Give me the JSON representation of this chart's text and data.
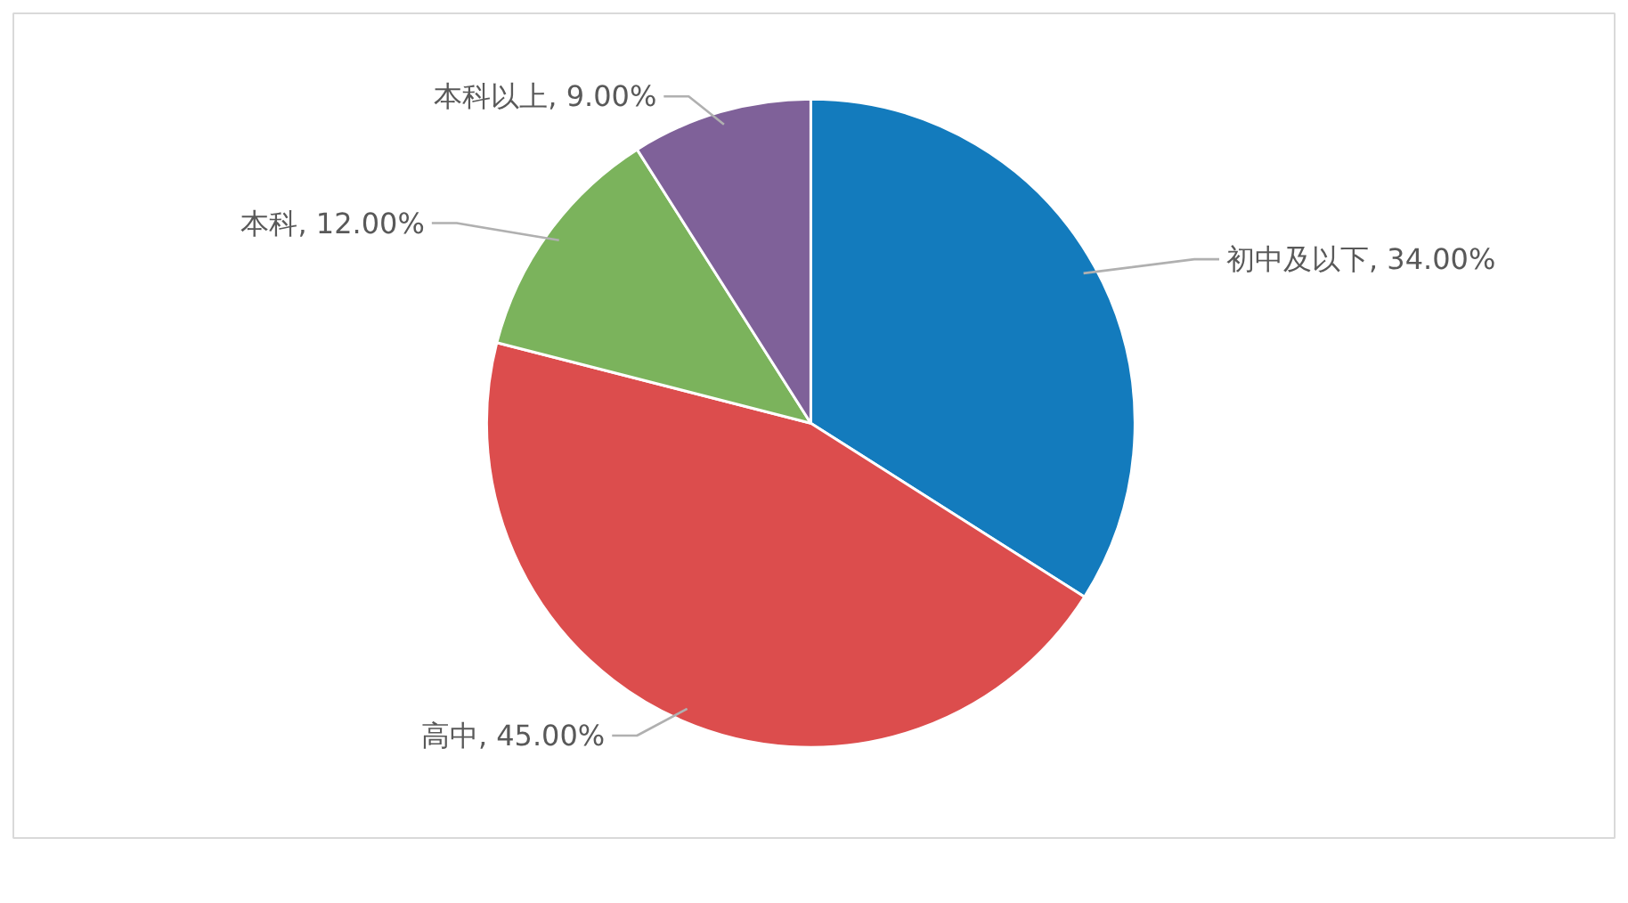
{
  "chart_data": {
    "type": "pie",
    "categories": [
      "初中及以下",
      "高中",
      "本科",
      "本科以上"
    ],
    "values": [
      34,
      45,
      12,
      9
    ],
    "colors": [
      "#137bbd",
      "#dc4d4d",
      "#7bb35c",
      "#7f6199"
    ],
    "value_labels": [
      "34.00%",
      "45.00%",
      "12.00%",
      "9.00%"
    ]
  }
}
